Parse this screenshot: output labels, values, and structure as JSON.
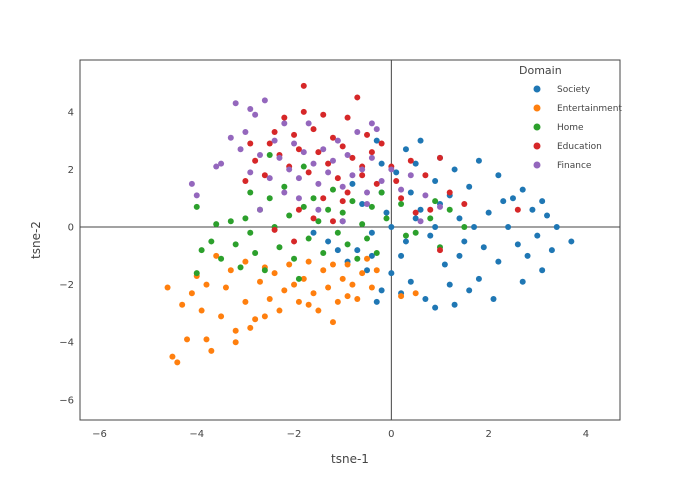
{
  "chart_data": {
    "type": "scatter",
    "xlabel": "tsne-1",
    "ylabel": "tsne-2",
    "xlim": [
      -6.4,
      4.7
    ],
    "ylim": [
      -6.7,
      5.8
    ],
    "xticks": [
      -6,
      -4,
      -2,
      0,
      2,
      4
    ],
    "yticks": [
      -6,
      -4,
      -2,
      0,
      2,
      4
    ],
    "x_tick_labels": [
      "−6",
      "−4",
      "−2",
      "0",
      "2",
      "4"
    ],
    "y_tick_labels": [
      "−6",
      "−4",
      "−2",
      "0",
      "2",
      "4"
    ],
    "grid": false,
    "zero_lines": true,
    "legend": {
      "title": "Domain",
      "placement": "top-right"
    },
    "series": [
      {
        "name": "Society",
        "color": "#1f77b4",
        "points": [
          [
            0.5,
            0.3
          ],
          [
            1.0,
            0.8
          ],
          [
            1.5,
            -0.5
          ],
          [
            0.2,
            -1.0
          ],
          [
            2.0,
            0.5
          ],
          [
            2.5,
            1.0
          ],
          [
            3.0,
            -0.3
          ],
          [
            3.2,
            0.4
          ],
          [
            3.7,
            -0.5
          ],
          [
            3.3,
            -0.8
          ],
          [
            2.8,
            -1.0
          ],
          [
            2.2,
            -1.2
          ],
          [
            1.8,
            -1.8
          ],
          [
            1.2,
            -2.0
          ],
          [
            0.7,
            -2.5
          ],
          [
            0.2,
            -2.3
          ],
          [
            -0.2,
            -2.2
          ],
          [
            -0.5,
            -1.5
          ],
          [
            -0.7,
            -0.8
          ],
          [
            -0.4,
            -0.2
          ],
          [
            -0.1,
            0.5
          ],
          [
            0.4,
            1.2
          ],
          [
            0.9,
            1.6
          ],
          [
            1.3,
            2.0
          ],
          [
            1.8,
            2.3
          ],
          [
            2.2,
            1.8
          ],
          [
            2.7,
            1.3
          ],
          [
            3.1,
            0.9
          ],
          [
            0.3,
            2.7
          ],
          [
            -0.3,
            3.0
          ],
          [
            0.6,
            3.0
          ],
          [
            1.0,
            2.4
          ],
          [
            1.6,
            1.4
          ],
          [
            2.4,
            0.0
          ],
          [
            1.9,
            -0.7
          ],
          [
            1.1,
            -1.3
          ],
          [
            0.0,
            -1.6
          ],
          [
            -0.9,
            -1.2
          ],
          [
            -1.3,
            -0.5
          ],
          [
            -1.6,
            -0.2
          ],
          [
            -1.0,
            0.2
          ],
          [
            -0.6,
            0.8
          ],
          [
            0.1,
            1.9
          ],
          [
            0.8,
            -0.3
          ],
          [
            1.4,
            0.3
          ],
          [
            2.6,
            -0.6
          ],
          [
            3.4,
            0.0
          ],
          [
            2.9,
            0.6
          ],
          [
            2.1,
            -2.5
          ],
          [
            1.6,
            -2.2
          ],
          [
            0.4,
            -1.9
          ],
          [
            -0.3,
            -2.6
          ],
          [
            0.9,
            -2.8
          ],
          [
            1.3,
            -2.7
          ],
          [
            2.7,
            -1.9
          ],
          [
            3.1,
            -1.5
          ],
          [
            -0.8,
            1.5
          ],
          [
            -0.2,
            2.2
          ],
          [
            0.5,
            2.2
          ],
          [
            1.2,
            1.1
          ],
          [
            0.0,
            0.0
          ],
          [
            0.3,
            -0.5
          ],
          [
            -0.4,
            -1.0
          ],
          [
            1.7,
            0.0
          ],
          [
            2.3,
            0.9
          ],
          [
            1.4,
            -1.0
          ],
          [
            0.6,
            0.6
          ],
          [
            -1.1,
            -0.8
          ],
          [
            -0.2,
            1.2
          ],
          [
            0.9,
            0.0
          ]
        ]
      },
      {
        "name": "Entertainment",
        "color": "#ff7f0e",
        "points": [
          [
            -4.6,
            -2.1
          ],
          [
            -4.4,
            -4.7
          ],
          [
            -4.5,
            -4.5
          ],
          [
            -4.2,
            -3.9
          ],
          [
            -4.3,
            -2.7
          ],
          [
            -4.1,
            -2.3
          ],
          [
            -4.0,
            -1.7
          ],
          [
            -3.9,
            -2.9
          ],
          [
            -3.8,
            -3.9
          ],
          [
            -3.7,
            -4.3
          ],
          [
            -3.5,
            -3.1
          ],
          [
            -3.4,
            -2.1
          ],
          [
            -3.3,
            -1.5
          ],
          [
            -3.2,
            -3.6
          ],
          [
            -3.2,
            -4.0
          ],
          [
            -3.0,
            -2.6
          ],
          [
            -3.0,
            -1.2
          ],
          [
            -2.8,
            -3.2
          ],
          [
            -2.7,
            -1.9
          ],
          [
            -2.6,
            -3.1
          ],
          [
            -2.5,
            -2.5
          ],
          [
            -2.4,
            -1.6
          ],
          [
            -2.3,
            -2.9
          ],
          [
            -2.2,
            -2.2
          ],
          [
            -2.1,
            -1.3
          ],
          [
            -2.0,
            -2.0
          ],
          [
            -1.9,
            -2.6
          ],
          [
            -1.8,
            -1.8
          ],
          [
            -1.7,
            -1.2
          ],
          [
            -1.6,
            -2.3
          ],
          [
            -1.5,
            -2.9
          ],
          [
            -1.4,
            -1.5
          ],
          [
            -1.3,
            -2.1
          ],
          [
            -1.2,
            -3.3
          ],
          [
            -1.1,
            -2.6
          ],
          [
            -1.0,
            -1.8
          ],
          [
            -0.9,
            -1.3
          ],
          [
            -0.8,
            -2.0
          ],
          [
            -0.7,
            -2.5
          ],
          [
            -0.6,
            -1.6
          ],
          [
            -0.5,
            -1.1
          ],
          [
            -0.4,
            -2.1
          ],
          [
            -0.3,
            -1.5
          ],
          [
            0.2,
            -2.4
          ],
          [
            0.5,
            -2.3
          ],
          [
            -3.6,
            -1.0
          ],
          [
            -3.8,
            -2.0
          ],
          [
            -2.9,
            -3.5
          ],
          [
            -2.6,
            -1.4
          ],
          [
            -1.7,
            -2.7
          ],
          [
            -1.2,
            -1.3
          ],
          [
            -0.9,
            -2.4
          ]
        ]
      },
      {
        "name": "Home",
        "color": "#2ca02c",
        "points": [
          [
            -4.0,
            0.7
          ],
          [
            -3.9,
            -0.8
          ],
          [
            -4.0,
            -1.6
          ],
          [
            -3.7,
            -0.5
          ],
          [
            -3.6,
            0.1
          ],
          [
            -3.5,
            -1.1
          ],
          [
            -3.3,
            0.2
          ],
          [
            -3.2,
            -0.6
          ],
          [
            -3.1,
            -1.4
          ],
          [
            -3.0,
            0.3
          ],
          [
            -2.9,
            1.2
          ],
          [
            -2.9,
            -0.2
          ],
          [
            -2.8,
            -0.9
          ],
          [
            -2.7,
            0.6
          ],
          [
            -2.6,
            -1.5
          ],
          [
            -2.5,
            1.0
          ],
          [
            -2.4,
            0.0
          ],
          [
            -2.3,
            -0.7
          ],
          [
            -2.2,
            1.4
          ],
          [
            -2.1,
            0.4
          ],
          [
            -2.0,
            -1.1
          ],
          [
            -1.9,
            -1.8
          ],
          [
            -1.8,
            0.7
          ],
          [
            -1.7,
            -0.4
          ],
          [
            -1.6,
            1.0
          ],
          [
            -1.5,
            0.2
          ],
          [
            -1.4,
            -0.9
          ],
          [
            -1.3,
            0.6
          ],
          [
            -1.2,
            1.3
          ],
          [
            -1.1,
            -0.2
          ],
          [
            -1.0,
            0.5
          ],
          [
            -0.9,
            -0.6
          ],
          [
            -0.8,
            0.9
          ],
          [
            -0.7,
            -1.1
          ],
          [
            -0.6,
            0.1
          ],
          [
            -0.5,
            -0.4
          ],
          [
            -0.4,
            0.7
          ],
          [
            -0.3,
            -0.9
          ],
          [
            -0.2,
            1.2
          ],
          [
            0.2,
            0.8
          ],
          [
            0.5,
            -0.2
          ],
          [
            0.8,
            0.3
          ],
          [
            1.0,
            -0.7
          ],
          [
            1.2,
            0.6
          ],
          [
            1.5,
            0.0
          ],
          [
            -0.1,
            0.3
          ],
          [
            0.3,
            -0.3
          ],
          [
            0.9,
            0.9
          ],
          [
            -2.5,
            2.5
          ],
          [
            -1.8,
            2.1
          ]
        ]
      },
      {
        "name": "Education",
        "color": "#d62728",
        "points": [
          [
            -3.0,
            1.6
          ],
          [
            -2.9,
            2.9
          ],
          [
            -2.8,
            2.3
          ],
          [
            -2.6,
            1.8
          ],
          [
            -2.5,
            2.9
          ],
          [
            -2.4,
            3.3
          ],
          [
            -2.3,
            2.5
          ],
          [
            -2.2,
            3.8
          ],
          [
            -2.1,
            2.1
          ],
          [
            -2.0,
            3.2
          ],
          [
            -1.9,
            2.7
          ],
          [
            -1.8,
            4.0
          ],
          [
            -1.8,
            4.9
          ],
          [
            -1.7,
            1.9
          ],
          [
            -1.6,
            3.4
          ],
          [
            -1.5,
            2.6
          ],
          [
            -1.4,
            3.9
          ],
          [
            -1.3,
            2.2
          ],
          [
            -1.2,
            3.1
          ],
          [
            -1.1,
            1.7
          ],
          [
            -1.0,
            2.8
          ],
          [
            -0.9,
            3.8
          ],
          [
            -0.8,
            2.4
          ],
          [
            -0.7,
            4.5
          ],
          [
            -0.6,
            1.8
          ],
          [
            -0.5,
            3.2
          ],
          [
            -0.4,
            2.6
          ],
          [
            -0.3,
            1.5
          ],
          [
            -0.2,
            2.9
          ],
          [
            0.0,
            2.1
          ],
          [
            0.1,
            1.6
          ],
          [
            0.4,
            2.3
          ],
          [
            0.7,
            1.8
          ],
          [
            1.0,
            2.4
          ],
          [
            1.2,
            1.2
          ],
          [
            -1.9,
            0.6
          ],
          [
            -1.6,
            0.3
          ],
          [
            -2.0,
            -0.5
          ],
          [
            -1.0,
            0.9
          ],
          [
            -1.2,
            0.2
          ],
          [
            0.8,
            0.6
          ],
          [
            1.0,
            -0.8
          ],
          [
            -0.9,
            1.2
          ],
          [
            0.2,
            1.0
          ],
          [
            1.5,
            0.8
          ],
          [
            -2.4,
            -0.1
          ],
          [
            -1.4,
            1.0
          ],
          [
            -0.6,
            2.1
          ],
          [
            0.5,
            0.5
          ],
          [
            2.6,
            0.6
          ]
        ]
      },
      {
        "name": "Finance",
        "color": "#9467bd",
        "points": [
          [
            -4.1,
            1.5
          ],
          [
            -4.0,
            1.1
          ],
          [
            -3.6,
            2.1
          ],
          [
            -3.5,
            2.2
          ],
          [
            -3.3,
            3.1
          ],
          [
            -3.2,
            4.3
          ],
          [
            -3.1,
            2.7
          ],
          [
            -3.0,
            3.3
          ],
          [
            -2.9,
            1.9
          ],
          [
            -2.8,
            3.9
          ],
          [
            -2.7,
            2.5
          ],
          [
            -2.6,
            4.4
          ],
          [
            -2.5,
            1.7
          ],
          [
            -2.4,
            3.0
          ],
          [
            -2.3,
            2.4
          ],
          [
            -2.2,
            3.6
          ],
          [
            -2.1,
            2.0
          ],
          [
            -2.0,
            2.9
          ],
          [
            -1.9,
            1.7
          ],
          [
            -1.8,
            2.6
          ],
          [
            -1.7,
            3.6
          ],
          [
            -1.6,
            2.2
          ],
          [
            -1.5,
            1.5
          ],
          [
            -1.4,
            2.7
          ],
          [
            -1.3,
            1.9
          ],
          [
            -1.2,
            2.3
          ],
          [
            -1.1,
            3.0
          ],
          [
            -1.0,
            1.4
          ],
          [
            -0.9,
            2.5
          ],
          [
            -0.8,
            1.8
          ],
          [
            -0.7,
            3.3
          ],
          [
            -0.6,
            2.0
          ],
          [
            -0.5,
            1.2
          ],
          [
            -0.4,
            2.4
          ],
          [
            -0.3,
            3.4
          ],
          [
            -0.2,
            1.6
          ],
          [
            0.0,
            2.0
          ],
          [
            0.2,
            1.3
          ],
          [
            0.4,
            1.8
          ],
          [
            0.7,
            1.1
          ],
          [
            1.0,
            0.7
          ],
          [
            -2.7,
            0.6
          ],
          [
            -1.9,
            1.0
          ],
          [
            -1.5,
            0.6
          ],
          [
            -1.0,
            0.2
          ],
          [
            -0.5,
            0.8
          ],
          [
            -2.2,
            1.2
          ],
          [
            0.6,
            0.2
          ],
          [
            -2.9,
            4.1
          ],
          [
            -0.4,
            3.6
          ]
        ]
      }
    ]
  }
}
